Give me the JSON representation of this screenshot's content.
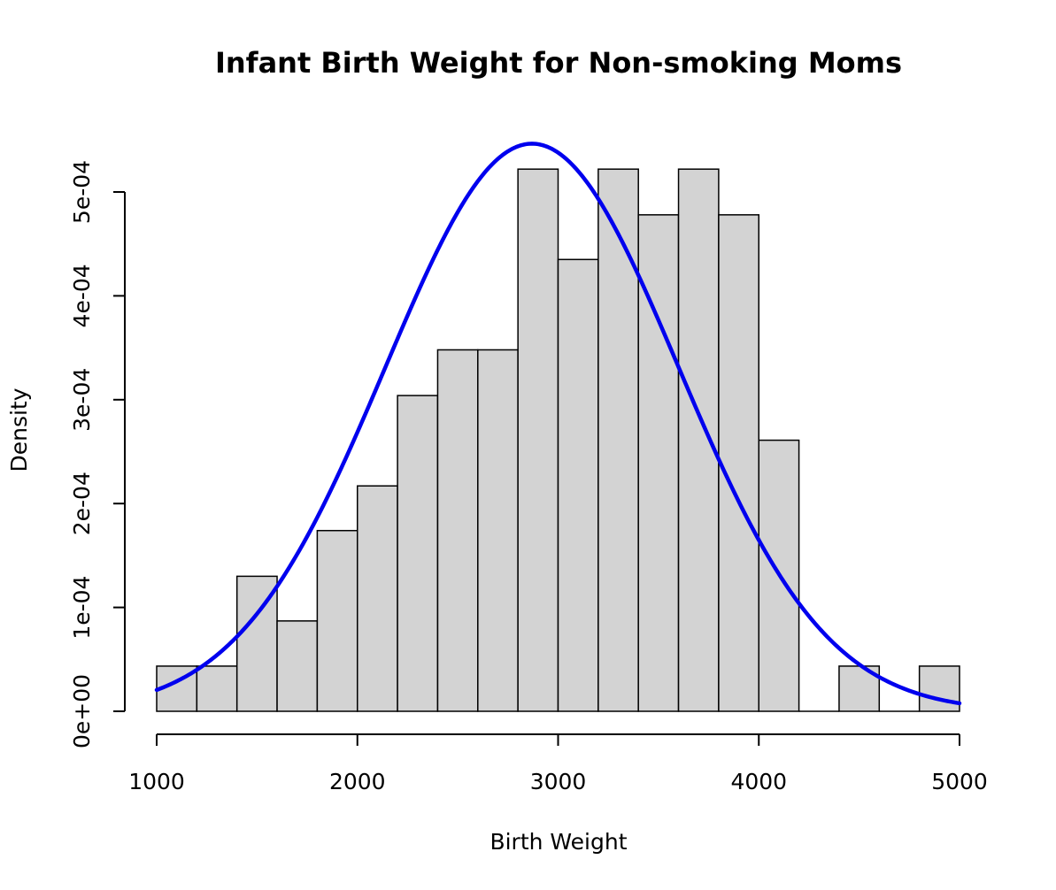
{
  "chart_data": {
    "type": "bar",
    "title": "Infant Birth Weight for Non-smoking Moms",
    "xlabel": "Birth Weight",
    "ylabel": "Density",
    "xlim": [
      1000,
      5000
    ],
    "ylim": [
      0,
      0.0005
    ],
    "x_ticks": [
      1000,
      2000,
      3000,
      4000,
      5000
    ],
    "x_tick_labels": [
      "1000",
      "2000",
      "3000",
      "4000",
      "5000"
    ],
    "y_ticks": [
      0,
      0.0001,
      0.0002,
      0.0003,
      0.0004,
      0.0005
    ],
    "y_tick_labels": [
      "0e+00",
      "1e-04",
      "2e-04",
      "3e-04",
      "4e-04",
      "5e-04"
    ],
    "grid": false,
    "bar_color": "#d3d3d3",
    "histogram": {
      "bin_edges": [
        1000,
        1200,
        1400,
        1600,
        1800,
        2000,
        2200,
        2400,
        2600,
        2800,
        3000,
        3200,
        3400,
        3600,
        3800,
        4000,
        4200,
        4400,
        4600,
        4800,
        5000
      ],
      "density": [
        4.35e-05,
        4.35e-05,
        0.00013,
        8.7e-05,
        0.000174,
        0.000217,
        0.000304,
        0.000348,
        0.000348,
        0.000522,
        0.000435,
        0.000522,
        0.000478,
        0.000522,
        0.000478,
        0.000261,
        0,
        4.35e-05,
        0,
        4.35e-05
      ]
    },
    "normal_curve": {
      "color": "#0000ee",
      "mean": 2870,
      "sd": 730
    }
  }
}
